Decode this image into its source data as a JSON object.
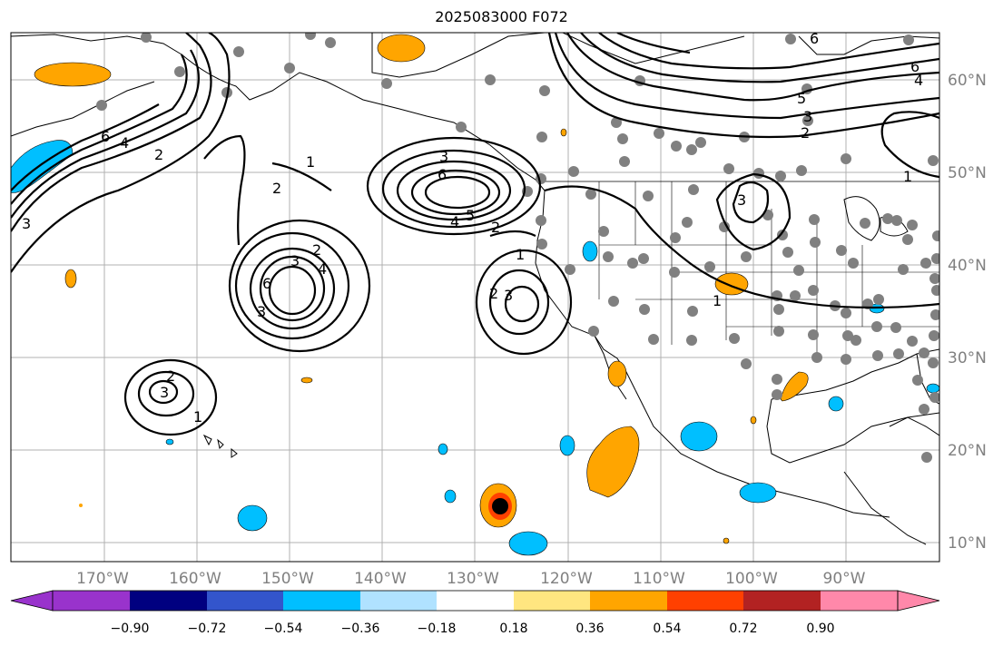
{
  "title": "2025083000 F072",
  "lat_labels": [
    "60°N",
    "50°N",
    "40°N",
    "30°N",
    "20°N",
    "10°N"
  ],
  "lon_labels": [
    "170°W",
    "160°W",
    "150°W",
    "140°W",
    "130°W",
    "120°W",
    "110°W",
    "100°W",
    "90°W"
  ],
  "colorbar": {
    "labels": [
      "−0.90",
      "−0.72",
      "−0.54",
      "−0.36",
      "−0.18",
      "0.18",
      "0.36",
      "0.54",
      "0.72",
      "0.90"
    ],
    "colors": [
      "#9933cc",
      "#000080",
      "#3355cc",
      "#00bfff",
      "#b0e2ff",
      "#ffffff",
      "#ffe680",
      "#ffa500",
      "#ff4000",
      "#b22222",
      "#ff88aa"
    ]
  },
  "contour_labels": [
    "1",
    "2",
    "3",
    "4",
    "5",
    "6"
  ],
  "colors": {
    "ocean": "#ffffff",
    "land_outline": "#000000",
    "grid": "#b0b0b0",
    "station_dot": "#808080"
  }
}
